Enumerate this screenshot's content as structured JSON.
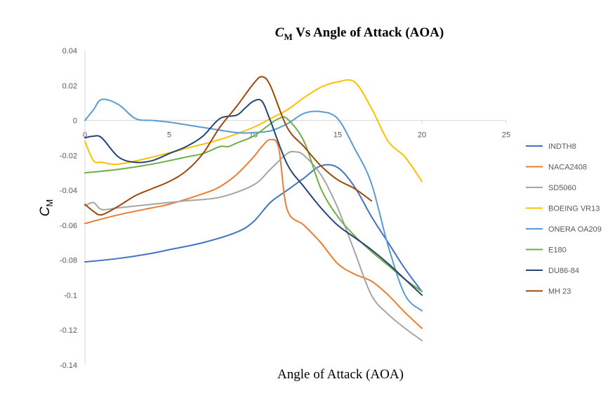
{
  "chart_data": {
    "type": "line",
    "title_main": "C",
    "title_sub": "M",
    "title_rest": " Vs Angle of Attack (AOA)",
    "xlabel": "Angle of Attack (AOA)",
    "ylabel_main": "C",
    "ylabel_sub": "M",
    "xlim": [
      0,
      25
    ],
    "ylim": [
      -0.14,
      0.04
    ],
    "x_ticks": [
      "0",
      "5",
      "10",
      "15",
      "20",
      "25"
    ],
    "x_tick_values": [
      0,
      5,
      10,
      15,
      20,
      25
    ],
    "y_ticks": [
      "0.04",
      "0.02",
      "0",
      "-0.02",
      "-0.04",
      "-0.06",
      "-0.08",
      "-0.1",
      "-0.12",
      "-0.14"
    ],
    "y_tick_values": [
      0.04,
      0.02,
      0,
      -0.02,
      -0.04,
      -0.06,
      -0.08,
      -0.1,
      -0.12,
      -0.14
    ],
    "grid": false,
    "legend_position": "right",
    "series": [
      {
        "name": "INDTH8",
        "color": "#4472c4",
        "points": [
          [
            0,
            -0.081
          ],
          [
            2,
            -0.079
          ],
          [
            4,
            -0.076
          ],
          [
            5,
            -0.074
          ],
          [
            7,
            -0.07
          ],
          [
            9,
            -0.064
          ],
          [
            10,
            -0.058
          ],
          [
            11,
            -0.047
          ],
          [
            12,
            -0.04
          ],
          [
            13,
            -0.033
          ],
          [
            14,
            -0.026
          ],
          [
            15,
            -0.027
          ],
          [
            16,
            -0.038
          ],
          [
            17,
            -0.055
          ],
          [
            18,
            -0.07
          ],
          [
            19,
            -0.085
          ],
          [
            20,
            -0.098
          ]
        ]
      },
      {
        "name": "NACA2408",
        "color": "#ed7d31",
        "points": [
          [
            0,
            -0.059
          ],
          [
            2,
            -0.054
          ],
          [
            4,
            -0.05
          ],
          [
            5,
            -0.048
          ],
          [
            7,
            -0.042
          ],
          [
            8,
            -0.038
          ],
          [
            9,
            -0.031
          ],
          [
            10,
            -0.021
          ],
          [
            10.5,
            -0.015
          ],
          [
            11,
            -0.011
          ],
          [
            11.5,
            -0.016
          ],
          [
            12,
            -0.051
          ],
          [
            13,
            -0.06
          ],
          [
            14,
            -0.07
          ],
          [
            15,
            -0.082
          ],
          [
            16,
            -0.088
          ],
          [
            17,
            -0.092
          ],
          [
            18,
            -0.1
          ],
          [
            19,
            -0.11
          ],
          [
            20,
            -0.119
          ]
        ]
      },
      {
        "name": "SD5060",
        "color": "#a5a5a5",
        "points": [
          [
            0,
            -0.049
          ],
          [
            0.5,
            -0.047
          ],
          [
            1,
            -0.051
          ],
          [
            2,
            -0.05
          ],
          [
            4,
            -0.048
          ],
          [
            6,
            -0.046
          ],
          [
            8,
            -0.044
          ],
          [
            10,
            -0.037
          ],
          [
            11,
            -0.028
          ],
          [
            12,
            -0.019
          ],
          [
            12.5,
            -0.018
          ],
          [
            13,
            -0.02
          ],
          [
            14,
            -0.031
          ],
          [
            15,
            -0.05
          ],
          [
            16,
            -0.075
          ],
          [
            17,
            -0.1
          ],
          [
            18,
            -0.111
          ],
          [
            19,
            -0.119
          ],
          [
            20,
            -0.126
          ]
        ]
      },
      {
        "name": "BOEING VR13",
        "color": "#ffc000",
        "points": [
          [
            0,
            -0.012
          ],
          [
            0.5,
            -0.023
          ],
          [
            1,
            -0.024
          ],
          [
            2,
            -0.025
          ],
          [
            4,
            -0.021
          ],
          [
            6,
            -0.016
          ],
          [
            8,
            -0.011
          ],
          [
            10,
            -0.004
          ],
          [
            11,
            0.001
          ],
          [
            12,
            0.006
          ],
          [
            13,
            0.013
          ],
          [
            14,
            0.019
          ],
          [
            15,
            0.022
          ],
          [
            16,
            0.022
          ],
          [
            17,
            0.007
          ],
          [
            18,
            -0.012
          ],
          [
            19,
            -0.021
          ],
          [
            20,
            -0.035
          ]
        ]
      },
      {
        "name": "ONERA OA209",
        "color": "#5b9bd5",
        "points": [
          [
            0,
            0.0
          ],
          [
            0.5,
            0.006
          ],
          [
            1,
            0.012
          ],
          [
            2,
            0.009
          ],
          [
            3,
            0.001
          ],
          [
            4,
            0.0
          ],
          [
            5,
            -0.001
          ],
          [
            7,
            -0.004
          ],
          [
            9,
            -0.007
          ],
          [
            10,
            -0.007
          ],
          [
            11,
            -0.006
          ],
          [
            12,
            -0.002
          ],
          [
            13,
            0.004
          ],
          [
            14,
            0.005
          ],
          [
            15,
            0.001
          ],
          [
            16,
            -0.016
          ],
          [
            17,
            -0.036
          ],
          [
            18,
            -0.072
          ],
          [
            19,
            -0.1
          ],
          [
            20,
            -0.109
          ]
        ]
      },
      {
        "name": "E180",
        "color": "#70ad47",
        "points": [
          [
            0,
            -0.03
          ],
          [
            2,
            -0.028
          ],
          [
            4,
            -0.025
          ],
          [
            6,
            -0.021
          ],
          [
            7,
            -0.019
          ],
          [
            8,
            -0.015
          ],
          [
            8.5,
            -0.015
          ],
          [
            9,
            -0.013
          ],
          [
            10,
            -0.009
          ],
          [
            11,
            -0.002
          ],
          [
            11.5,
            0.001
          ],
          [
            12,
            0.001
          ],
          [
            13,
            -0.012
          ],
          [
            14,
            -0.039
          ],
          [
            15,
            -0.055
          ],
          [
            16,
            -0.066
          ],
          [
            17,
            -0.075
          ],
          [
            18,
            -0.083
          ],
          [
            19,
            -0.091
          ],
          [
            20,
            -0.098
          ]
        ]
      },
      {
        "name": "DU86-84",
        "color": "#264478",
        "points": [
          [
            0,
            -0.01
          ],
          [
            0.5,
            -0.009
          ],
          [
            1,
            -0.01
          ],
          [
            2,
            -0.021
          ],
          [
            3,
            -0.024
          ],
          [
            4,
            -0.023
          ],
          [
            5,
            -0.019
          ],
          [
            6,
            -0.015
          ],
          [
            7,
            -0.009
          ],
          [
            8,
            0.001
          ],
          [
            9,
            0.003
          ],
          [
            9.5,
            0.007
          ],
          [
            10,
            0.011
          ],
          [
            10.5,
            0.011
          ],
          [
            11,
            0.0
          ],
          [
            12,
            -0.025
          ],
          [
            13,
            -0.038
          ],
          [
            14,
            -0.05
          ],
          [
            15,
            -0.06
          ],
          [
            16,
            -0.067
          ],
          [
            17,
            -0.074
          ],
          [
            18,
            -0.082
          ],
          [
            19,
            -0.091
          ],
          [
            20,
            -0.1
          ]
        ]
      },
      {
        "name": "MH 23",
        "color": "#9e480e",
        "points": [
          [
            0,
            -0.048
          ],
          [
            0.5,
            -0.052
          ],
          [
            1,
            -0.054
          ],
          [
            2,
            -0.049
          ],
          [
            3,
            -0.043
          ],
          [
            4,
            -0.039
          ],
          [
            5,
            -0.035
          ],
          [
            6,
            -0.029
          ],
          [
            7,
            -0.019
          ],
          [
            8,
            -0.004
          ],
          [
            9,
            0.008
          ],
          [
            10,
            0.021
          ],
          [
            10.5,
            0.025
          ],
          [
            11,
            0.02
          ],
          [
            12,
            -0.004
          ],
          [
            13,
            -0.015
          ],
          [
            14,
            -0.026
          ],
          [
            15,
            -0.034
          ],
          [
            16,
            -0.039
          ],
          [
            17,
            -0.046
          ]
        ]
      }
    ]
  }
}
